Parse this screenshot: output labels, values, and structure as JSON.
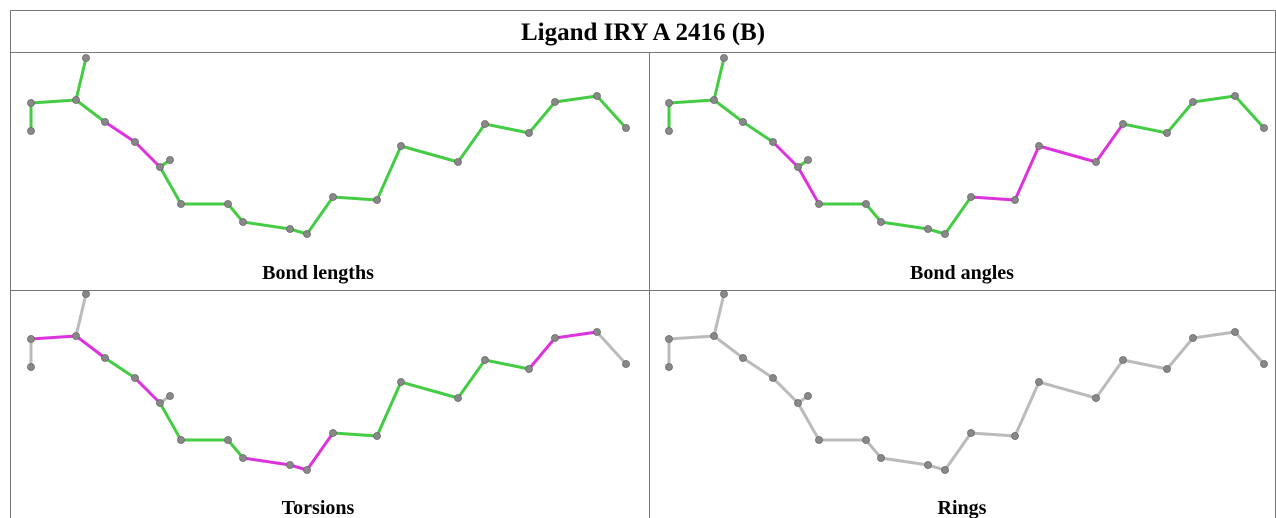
{
  "header": {
    "title": "Ligand IRY A 2416 (B)"
  },
  "panels": [
    {
      "caption": "Bond lengths"
    },
    {
      "caption": "Bond angles"
    },
    {
      "caption": "Torsions"
    },
    {
      "caption": "Rings"
    }
  ]
}
